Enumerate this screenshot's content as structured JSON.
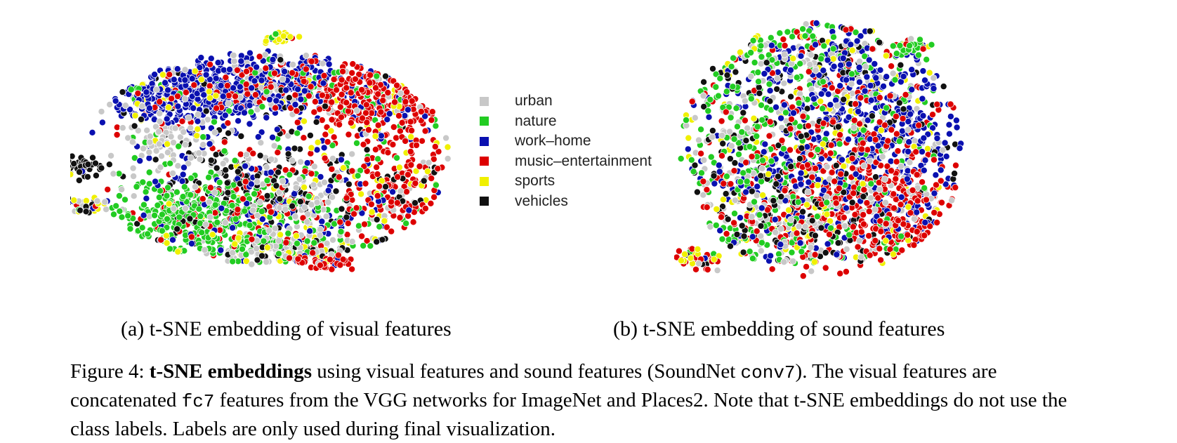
{
  "legend": [
    {
      "label": "urban",
      "color": "#c8c8c8"
    },
    {
      "label": "nature",
      "color": "#22cc22"
    },
    {
      "label": "work–home",
      "color": "#0a10b0"
    },
    {
      "label": "music–entertainment",
      "color": "#dd0000"
    },
    {
      "label": "sports",
      "color": "#f0f000"
    },
    {
      "label": "vehicles",
      "color": "#111111"
    }
  ],
  "subcaptions": {
    "a": "(a) t-SNE embedding of visual features",
    "b": "(b) t-SNE embedding of sound features"
  },
  "caption": {
    "prefix": "Figure 4: ",
    "bold": "t-SNE embeddings",
    "text1": " using visual features and sound features (SoundNet ",
    "code1": "conv7",
    "text2": "). The visual features are concatenated ",
    "code2": "fc7",
    "text3": " features from the VGG networks for ImageNet and Places2. Note that t-SNE embeddings do not use the class labels. Labels are only used during final visualization."
  },
  "chart_data": [
    {
      "type": "scatter",
      "title": "",
      "legend_position": "right",
      "series": [
        {
          "name": "urban",
          "color": "#c8c8c8"
        },
        {
          "name": "nature",
          "color": "#22cc22"
        },
        {
          "name": "work–home",
          "color": "#0a10b0"
        },
        {
          "name": "music–entertainment",
          "color": "#dd0000"
        },
        {
          "name": "sports",
          "color": "#f0f000"
        },
        {
          "name": "vehicles",
          "color": "#111111"
        }
      ]
    },
    {
      "type": "scatter",
      "title": "",
      "series": [
        {
          "name": "urban",
          "color": "#c8c8c8"
        },
        {
          "name": "nature",
          "color": "#22cc22"
        },
        {
          "name": "work–home",
          "color": "#0a10b0"
        },
        {
          "name": "music–entertainment",
          "color": "#dd0000"
        },
        {
          "name": "sports",
          "color": "#f0f000"
        },
        {
          "name": "vehicles",
          "color": "#111111"
        }
      ]
    }
  ]
}
